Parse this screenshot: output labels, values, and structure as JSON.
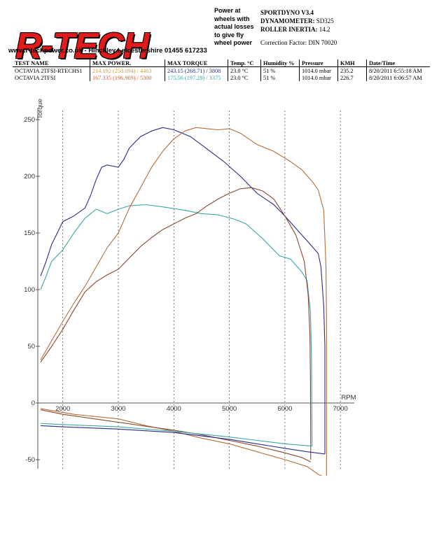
{
  "header": {
    "logo_text": "R-TECH",
    "logo_subline": "www.r-techpower.co.uk - Hinckley Leicestershire 01455 617233",
    "tagline": [
      "Power at",
      "wheels with",
      "actual losses",
      "to give fly",
      "wheel power"
    ],
    "software": "SPORTDYNO V3.4",
    "dynamometer_label": "DYNAMOMETER:",
    "dynamometer_value": "SD325",
    "roller_label": "ROLLER INERTIA:",
    "roller_value": "14.2",
    "correction": "Correction Factor: DIN 70020"
  },
  "table": {
    "columns": [
      "TEST NAME",
      "MAX POWER.",
      "MAX TORQUE",
      "Temp. °C",
      "Humidity %",
      "Pressure",
      "KMH",
      "Date/Time"
    ],
    "rows": [
      {
        "name": "OCTAVIA 2TFSI-RTECHS1",
        "power": "214.192 (258.094) / 4463",
        "torque": "243.15 (268.71) / 3808",
        "temp": "23.0 °C",
        "humidity": "51 %",
        "pressure": "1014.0 mbar",
        "kmh": "235.2",
        "datetime": "8/20/2011 6:55:18 AM",
        "power_color": "#d99a3d",
        "torque_color": "#2b2b8c"
      },
      {
        "name": "OCTAVIA 2TFSI",
        "power": "167.335 (196.969) / 5300",
        "torque": "175.56 (197.28) / 3375",
        "temp": "23.0 °C",
        "humidity": "51 %",
        "pressure": "1014.0 mbar",
        "kmh": "226.7",
        "datetime": "8/20/2011 6:06:57 AM",
        "power_color": "#e05a2b",
        "torque_color": "#3aa6a6"
      }
    ]
  },
  "chart_data": {
    "type": "line",
    "ylabel": "Torque",
    "xlabel": "RPM",
    "xlim": [
      1550,
      7250
    ],
    "ylim": [
      -58,
      258
    ],
    "x_ticks": [
      2000,
      3000,
      4000,
      5000,
      6000,
      7000
    ],
    "y_ticks": [
      -50,
      0,
      50,
      100,
      150,
      200,
      250
    ],
    "grid": "vertical dashed",
    "series": [
      {
        "color": "#2b2b8c",
        "values": [
          [
            1600,
            112
          ],
          [
            1700,
            125
          ],
          [
            1800,
            140
          ],
          [
            1900,
            150
          ],
          [
            2000,
            160
          ],
          [
            2200,
            165
          ],
          [
            2400,
            172
          ],
          [
            2500,
            183
          ],
          [
            2600,
            197
          ],
          [
            2700,
            208
          ],
          [
            2800,
            210
          ],
          [
            3000,
            208
          ],
          [
            3100,
            215
          ],
          [
            3200,
            225
          ],
          [
            3400,
            235
          ],
          [
            3600,
            240
          ],
          [
            3800,
            243
          ],
          [
            4000,
            241
          ],
          [
            4300,
            235
          ],
          [
            4600,
            224
          ],
          [
            4900,
            213
          ],
          [
            5200,
            200
          ],
          [
            5500,
            185
          ],
          [
            5800,
            175
          ],
          [
            6000,
            165
          ],
          [
            6200,
            154
          ],
          [
            6400,
            143
          ],
          [
            6600,
            132
          ],
          [
            6650,
            120
          ],
          [
            6700,
            85
          ],
          [
            6720,
            50
          ],
          [
            6720,
            -45
          ]
        ]
      },
      {
        "color": "#3aa6a6",
        "values": [
          [
            1600,
            100
          ],
          [
            1700,
            112
          ],
          [
            1800,
            125
          ],
          [
            2000,
            135
          ],
          [
            2200,
            150
          ],
          [
            2400,
            163
          ],
          [
            2600,
            171
          ],
          [
            2800,
            167
          ],
          [
            3000,
            171
          ],
          [
            3200,
            174
          ],
          [
            3500,
            175
          ],
          [
            3800,
            173
          ],
          [
            4200,
            170
          ],
          [
            4500,
            167
          ],
          [
            4800,
            166
          ],
          [
            5100,
            162
          ],
          [
            5300,
            158
          ],
          [
            5600,
            145
          ],
          [
            5900,
            130
          ],
          [
            6100,
            127
          ],
          [
            6300,
            116
          ],
          [
            6400,
            108
          ],
          [
            6460,
            80
          ],
          [
            6480,
            40
          ],
          [
            6490,
            -38
          ]
        ]
      },
      {
        "color": "#b46e38",
        "values": [
          [
            1600,
            38
          ],
          [
            1800,
            55
          ],
          [
            2000,
            72
          ],
          [
            2200,
            88
          ],
          [
            2400,
            103
          ],
          [
            2600,
            120
          ],
          [
            2800,
            137
          ],
          [
            3000,
            150
          ],
          [
            3200,
            172
          ],
          [
            3400,
            190
          ],
          [
            3600,
            208
          ],
          [
            3800,
            222
          ],
          [
            4000,
            233
          ],
          [
            4200,
            240
          ],
          [
            4400,
            243
          ],
          [
            4600,
            242
          ],
          [
            4800,
            241
          ],
          [
            5000,
            242
          ],
          [
            5200,
            238
          ],
          [
            5500,
            228
          ],
          [
            5800,
            222
          ],
          [
            6100,
            213
          ],
          [
            6300,
            206
          ],
          [
            6500,
            195
          ],
          [
            6600,
            188
          ],
          [
            6700,
            170
          ],
          [
            6740,
            120
          ],
          [
            6750,
            70
          ],
          [
            6750,
            -65
          ]
        ]
      },
      {
        "color": "#8a4a30",
        "values": [
          [
            1600,
            36
          ],
          [
            1800,
            50
          ],
          [
            2000,
            65
          ],
          [
            2200,
            82
          ],
          [
            2400,
            98
          ],
          [
            2600,
            107
          ],
          [
            2800,
            113
          ],
          [
            3000,
            118
          ],
          [
            3200,
            128
          ],
          [
            3400,
            138
          ],
          [
            3600,
            146
          ],
          [
            3800,
            153
          ],
          [
            4000,
            158
          ],
          [
            4200,
            163
          ],
          [
            4400,
            167
          ],
          [
            4600,
            174
          ],
          [
            4800,
            180
          ],
          [
            5000,
            185
          ],
          [
            5200,
            189
          ],
          [
            5400,
            190
          ],
          [
            5600,
            187
          ],
          [
            5800,
            180
          ],
          [
            6000,
            165
          ],
          [
            6200,
            148
          ],
          [
            6350,
            125
          ],
          [
            6420,
            95
          ],
          [
            6450,
            60
          ],
          [
            6460,
            20
          ],
          [
            6465,
            -50
          ]
        ]
      },
      {
        "color": "#b46e38",
        "values": [
          [
            1600,
            -5
          ],
          [
            2200,
            -10
          ],
          [
            3000,
            -14
          ],
          [
            3500,
            -20
          ],
          [
            4000,
            -25
          ],
          [
            4500,
            -31
          ],
          [
            5000,
            -36
          ],
          [
            5500,
            -43
          ],
          [
            6000,
            -50
          ],
          [
            6400,
            -56
          ],
          [
            6600,
            -63
          ],
          [
            6750,
            -66
          ]
        ]
      },
      {
        "color": "#8a4a30",
        "values": [
          [
            1600,
            -6
          ],
          [
            2000,
            -10
          ],
          [
            3000,
            -17
          ],
          [
            4000,
            -24
          ],
          [
            4500,
            -28
          ],
          [
            5000,
            -33
          ],
          [
            5500,
            -38
          ],
          [
            6000,
            -44
          ],
          [
            6300,
            -48
          ],
          [
            6465,
            -52
          ]
        ]
      },
      {
        "color": "#2b2b8c",
        "values": [
          [
            1600,
            -20
          ],
          [
            2000,
            -21
          ],
          [
            3000,
            -23
          ],
          [
            4000,
            -26
          ],
          [
            5000,
            -32
          ],
          [
            5500,
            -36
          ],
          [
            6000,
            -40
          ],
          [
            6400,
            -43
          ],
          [
            6720,
            -45
          ]
        ]
      },
      {
        "color": "#3aa6a6",
        "values": [
          [
            1600,
            -18
          ],
          [
            2000,
            -19
          ],
          [
            3000,
            -21
          ],
          [
            4000,
            -25
          ],
          [
            5000,
            -30
          ],
          [
            5500,
            -33
          ],
          [
            6000,
            -36
          ],
          [
            6490,
            -38
          ]
        ]
      }
    ]
  }
}
